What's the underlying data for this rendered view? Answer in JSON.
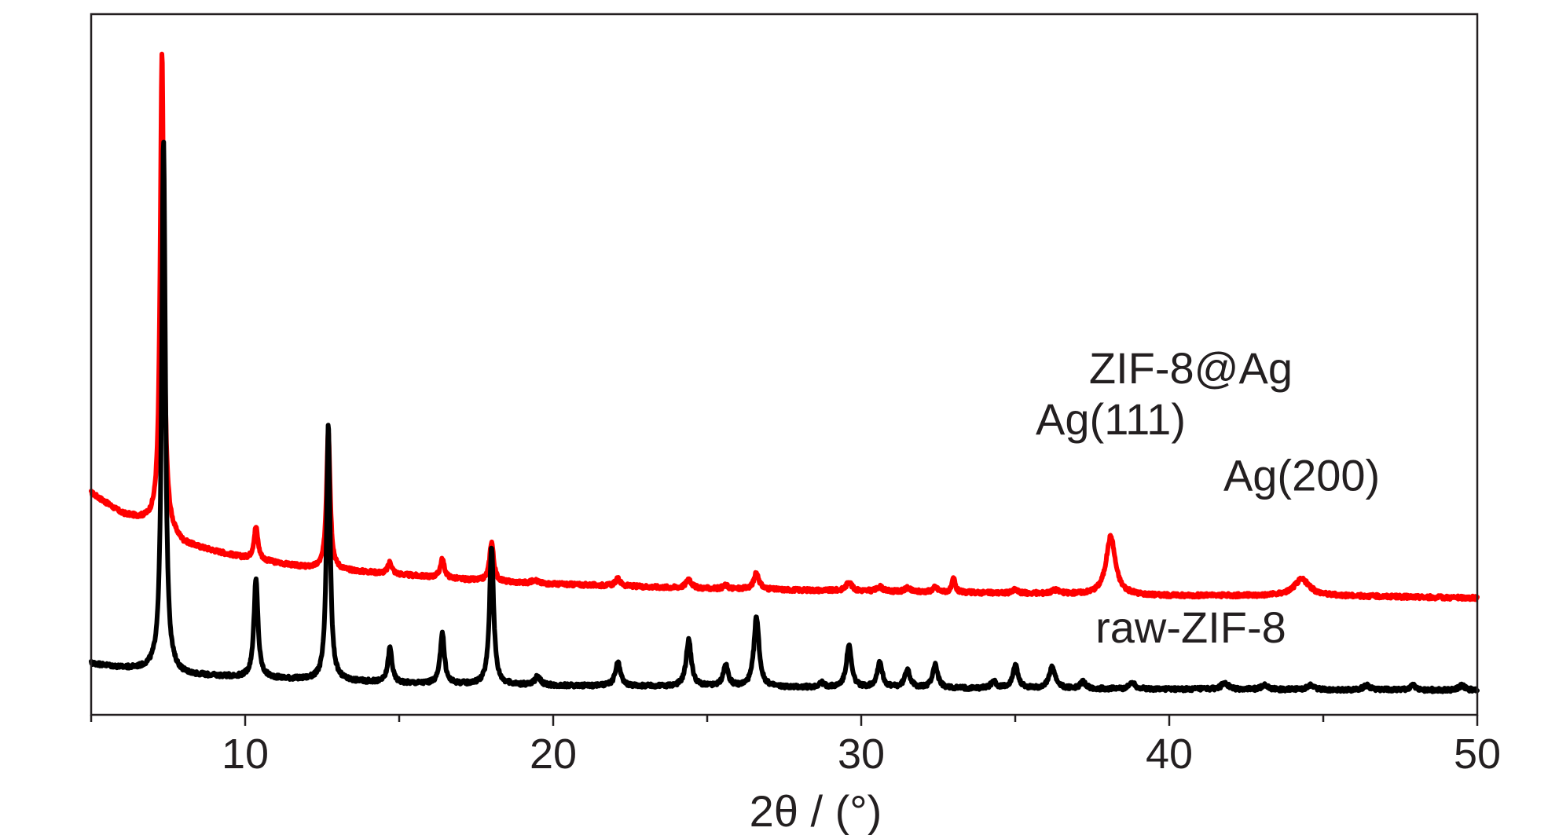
{
  "chart_data": {
    "type": "line",
    "title": "",
    "xlabel": "2θ / (°)",
    "ylabel": "",
    "xlim": [
      5,
      50
    ],
    "xticks": [
      10,
      20,
      30,
      40,
      50
    ],
    "xtick_labels": [
      "10",
      "20",
      "30",
      "40",
      "50"
    ],
    "yticks_shown": false,
    "grid": false,
    "y_units": "offset intensity (a.u.)",
    "series": [
      {
        "name": "ZIF-8@Ag",
        "color": "#ff0000",
        "baseline": [
          [
            5,
            95
          ],
          [
            6,
            86
          ],
          [
            7,
            82
          ],
          [
            8,
            73
          ],
          [
            9,
            70
          ],
          [
            10,
            67
          ],
          [
            12,
            63
          ],
          [
            14,
            61
          ],
          [
            16,
            59
          ],
          [
            18,
            57
          ],
          [
            20,
            56
          ],
          [
            25,
            54
          ],
          [
            30,
            53
          ],
          [
            35,
            52
          ],
          [
            40,
            51
          ],
          [
            45,
            51
          ],
          [
            50,
            50
          ]
        ],
        "peaks": [
          {
            "x": 7.3,
            "h": 204,
            "w": 0.07
          },
          {
            "x": 10.35,
            "h": 14,
            "w": 0.08
          },
          {
            "x": 12.7,
            "h": 60,
            "w": 0.07
          },
          {
            "x": 14.7,
            "h": 5,
            "w": 0.08
          },
          {
            "x": 16.4,
            "h": 8,
            "w": 0.08
          },
          {
            "x": 18.0,
            "h": 17,
            "w": 0.08
          },
          {
            "x": 19.4,
            "h": 1.5,
            "w": 0.1
          },
          {
            "x": 22.1,
            "h": 3,
            "w": 0.1
          },
          {
            "x": 24.4,
            "h": 4,
            "w": 0.1
          },
          {
            "x": 25.6,
            "h": 1.5,
            "w": 0.1
          },
          {
            "x": 26.6,
            "h": 7,
            "w": 0.1
          },
          {
            "x": 29.6,
            "h": 4,
            "w": 0.1
          },
          {
            "x": 30.6,
            "h": 2,
            "w": 0.1
          },
          {
            "x": 31.5,
            "h": 1.5,
            "w": 0.1
          },
          {
            "x": 32.4,
            "h": 2,
            "w": 0.1
          },
          {
            "x": 33.0,
            "h": 6,
            "w": 0.06
          },
          {
            "x": 35.0,
            "h": 1.5,
            "w": 0.1
          },
          {
            "x": 36.3,
            "h": 1.5,
            "w": 0.15
          },
          {
            "x": 38.1,
            "h": 25,
            "w": 0.18
          },
          {
            "x": 44.3,
            "h": 7,
            "w": 0.3
          }
        ]
      },
      {
        "name": "raw-ZIF-8",
        "color": "#000000",
        "baseline": [
          [
            5,
            22
          ],
          [
            6,
            20
          ],
          [
            7,
            19
          ],
          [
            8,
            17
          ],
          [
            10,
            16
          ],
          [
            12,
            15
          ],
          [
            15,
            13.5
          ],
          [
            20,
            12.5
          ],
          [
            30,
            11.5
          ],
          [
            40,
            11
          ],
          [
            50,
            10.5
          ]
        ],
        "peaks": [
          {
            "x": 7.35,
            "h": 228,
            "w": 0.07
          },
          {
            "x": 10.35,
            "h": 42,
            "w": 0.08
          },
          {
            "x": 12.7,
            "h": 109,
            "w": 0.07
          },
          {
            "x": 14.7,
            "h": 15,
            "w": 0.08
          },
          {
            "x": 16.4,
            "h": 22,
            "w": 0.08
          },
          {
            "x": 18.0,
            "h": 59,
            "w": 0.08
          },
          {
            "x": 19.5,
            "h": 4,
            "w": 0.1
          },
          {
            "x": 22.1,
            "h": 10,
            "w": 0.1
          },
          {
            "x": 24.4,
            "h": 20,
            "w": 0.1
          },
          {
            "x": 25.6,
            "h": 9,
            "w": 0.1
          },
          {
            "x": 26.6,
            "h": 30,
            "w": 0.1
          },
          {
            "x": 28.7,
            "h": 2,
            "w": 0.1
          },
          {
            "x": 29.6,
            "h": 18,
            "w": 0.1
          },
          {
            "x": 30.6,
            "h": 11,
            "w": 0.1
          },
          {
            "x": 31.5,
            "h": 8,
            "w": 0.1
          },
          {
            "x": 32.4,
            "h": 10,
            "w": 0.1
          },
          {
            "x": 34.3,
            "h": 3,
            "w": 0.1
          },
          {
            "x": 35.0,
            "h": 10,
            "w": 0.1
          },
          {
            "x": 36.2,
            "h": 9,
            "w": 0.12
          },
          {
            "x": 37.2,
            "h": 3,
            "w": 0.1
          },
          {
            "x": 38.8,
            "h": 3,
            "w": 0.1
          },
          {
            "x": 41.8,
            "h": 3,
            "w": 0.12
          },
          {
            "x": 43.1,
            "h": 2,
            "w": 0.12
          },
          {
            "x": 44.6,
            "h": 2,
            "w": 0.12
          },
          {
            "x": 46.4,
            "h": 2,
            "w": 0.12
          },
          {
            "x": 47.9,
            "h": 2,
            "w": 0.12
          },
          {
            "x": 49.5,
            "h": 2,
            "w": 0.12
          }
        ]
      }
    ],
    "annotations": [
      {
        "text": "ZIF-8@Ag",
        "x": 40.7,
        "y": 142
      },
      {
        "text": "Ag(111)",
        "x": 38.1,
        "y": 120
      },
      {
        "text": "Ag(200)",
        "x": 44.3,
        "y": 96
      },
      {
        "text": "raw-ZIF-8",
        "x": 40.7,
        "y": 31
      }
    ]
  }
}
